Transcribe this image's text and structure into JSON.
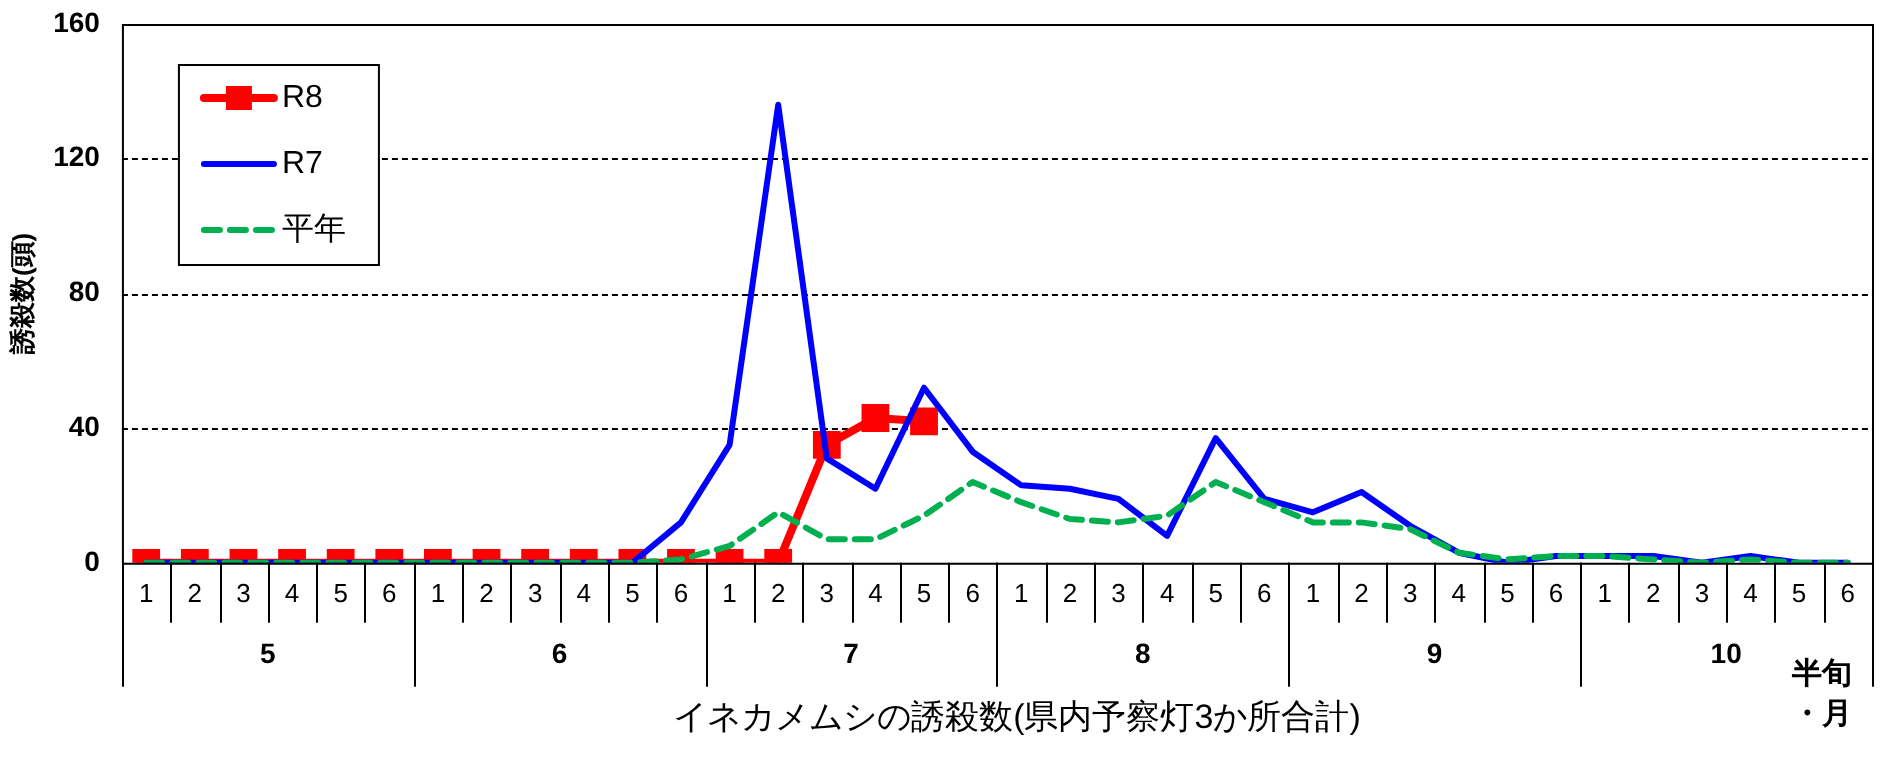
{
  "chart_data": {
    "type": "line",
    "title": "イネカメムシの誘殺数(県内予察灯3か所合計)",
    "xlabel": "半旬・月",
    "ylabel": "誘殺数(頭)",
    "categories": [
      "1",
      "2",
      "3",
      "4",
      "5",
      "6",
      "1",
      "2",
      "3",
      "4",
      "5",
      "6",
      "1",
      "2",
      "3",
      "4",
      "5",
      "6",
      "1",
      "2",
      "3",
      "4",
      "5",
      "6",
      "1",
      "2",
      "3",
      "4",
      "5",
      "6",
      "1",
      "2",
      "3",
      "4",
      "5",
      "6"
    ],
    "annotations": [
      "5",
      "6",
      "7",
      "8",
      "9",
      "10"
    ],
    "series": [
      {
        "name": "R8",
        "color": "#ff0000",
        "marker": "square",
        "line_style": "solid",
        "values": [
          0,
          0,
          0,
          0,
          0,
          0,
          0,
          0,
          0,
          0,
          0,
          0,
          0,
          0,
          35,
          43,
          42,
          null,
          null,
          null,
          null,
          null,
          null,
          null,
          null,
          null,
          null,
          null,
          null,
          null,
          null,
          null,
          null,
          null,
          null,
          null
        ]
      },
      {
        "name": "R7",
        "color": "#0000ff",
        "marker": "none",
        "line_style": "solid",
        "values": [
          0,
          0,
          0,
          0,
          0,
          0,
          0,
          0,
          0,
          0,
          0,
          12,
          35,
          136,
          31,
          22,
          52,
          33,
          23,
          22,
          19,
          8,
          37,
          19,
          15,
          21,
          11,
          3,
          0,
          2,
          2,
          2,
          0,
          2,
          0,
          0
        ]
      },
      {
        "name": "平年",
        "color": "#00b050",
        "marker": "none",
        "line_style": "dashed",
        "values": [
          0,
          0,
          0,
          0,
          0,
          0,
          0,
          0,
          0,
          0,
          0,
          1,
          5,
          15,
          7,
          7,
          14,
          24,
          18,
          13,
          12,
          14,
          24,
          18,
          12,
          12,
          10,
          3,
          1,
          2,
          2,
          1,
          0,
          1,
          0,
          0
        ]
      }
    ],
    "ylim": [
      0,
      160
    ],
    "yticks": [
      0,
      40,
      80,
      120,
      160
    ],
    "grid": "y",
    "legend": "top left"
  }
}
